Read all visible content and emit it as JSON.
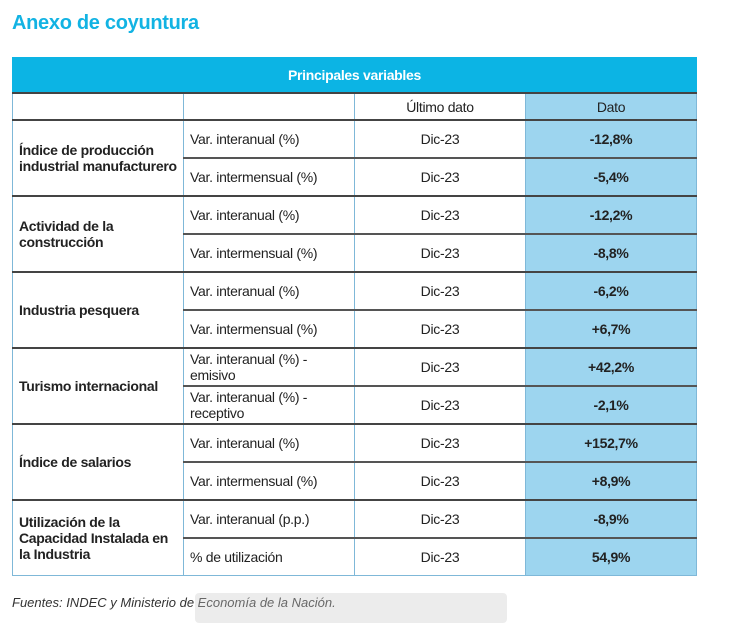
{
  "title": "Anexo de coyuntura",
  "table": {
    "caption": "Principales variables",
    "headers": [
      "",
      "",
      "Último dato",
      "Dato"
    ],
    "groups": [
      {
        "label": "Índice de producción industrial manufacturero",
        "rows": [
          [
            "Var. interanual (%)",
            "Dic-23",
            "-12,8%"
          ],
          [
            "Var. intermensual (%)",
            "Dic-23",
            "-5,4%"
          ]
        ]
      },
      {
        "label": "Actividad de la construcción",
        "rows": [
          [
            "Var. interanual (%)",
            "Dic-23",
            "-12,2%"
          ],
          [
            "Var. intermensual (%)",
            "Dic-23",
            "-8,8%"
          ]
        ]
      },
      {
        "label": "Industria pesquera",
        "rows": [
          [
            "Var. interanual (%)",
            "Dic-23",
            "-6,2%"
          ],
          [
            "Var. intermensual (%)",
            "Dic-23",
            "+6,7%"
          ]
        ]
      },
      {
        "label": "Turismo internacional",
        "rows": [
          [
            "Var. interanual (%) - emisivo",
            "Dic-23",
            "+42,2%"
          ],
          [
            "Var. interanual (%) - receptivo",
            "Dic-23",
            "-2,1%"
          ]
        ]
      },
      {
        "label": "Índice de salarios",
        "rows": [
          [
            "Var. interanual (%)",
            "Dic-23",
            "+152,7%"
          ],
          [
            "Var. intermensual (%)",
            "Dic-23",
            "+8,9%"
          ]
        ]
      },
      {
        "label": "Utilización de la Capacidad Instalada en la Industria",
        "rows": [
          [
            "Var. interanual (p.p.)",
            "Dic-23",
            "-8,9%"
          ],
          [
            "% de utilización",
            "Dic-23",
            "54,9%"
          ]
        ]
      }
    ]
  },
  "source": "Fuentes: INDEC y Ministerio de Economía de la Nación.",
  "colors": {
    "accent": "#0cb4e4",
    "dato_bg": "#9dd5ef"
  }
}
